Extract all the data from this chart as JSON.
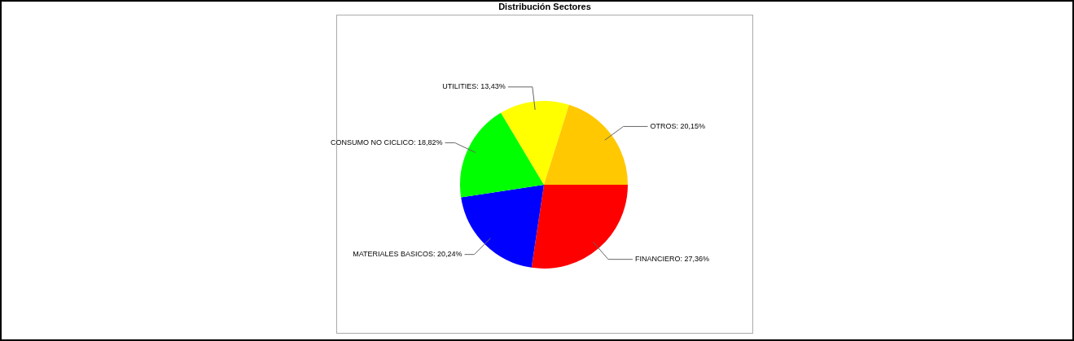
{
  "chart_data": {
    "type": "pie",
    "title": "Distribución Sectores",
    "categories": [
      "FINANCIERO",
      "MATERIALES BASICOS",
      "CONSUMO NO CICLICO",
      "UTILITIES",
      "OTROS"
    ],
    "values": [
      27.36,
      20.24,
      18.82,
      13.43,
      20.15
    ],
    "value_labels": [
      "27,36%",
      "20,24%",
      "18,82%",
      "13,43%",
      "20,15%"
    ],
    "colors": [
      "#ff0000",
      "#0000ff",
      "#00ff00",
      "#ffff00",
      "#ffc800"
    ],
    "legend": false
  }
}
